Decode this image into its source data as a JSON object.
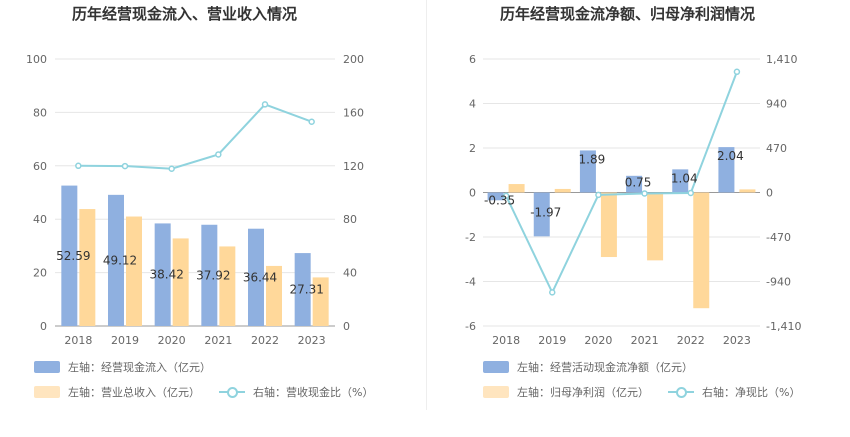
{
  "colors": {
    "blue": "#8fb0e0",
    "orange": "#ffd89a",
    "cyan": "#8fd3de",
    "grid": "#e6e6e6",
    "axis_text": "#666666",
    "title": "#333333"
  },
  "chart_data": [
    {
      "type": "bar",
      "title": "历年经营现金流入、营业收入情况",
      "categories": [
        "2018",
        "2019",
        "2020",
        "2021",
        "2022",
        "2023"
      ],
      "series": [
        {
          "name": "左轴：经营现金流入（亿元）",
          "axis": "left",
          "kind": "bar",
          "values": [
            52.59,
            49.12,
            38.42,
            37.92,
            36.44,
            27.31
          ],
          "labels": [
            "52.59",
            "49.12",
            "38.42",
            "37.92",
            "36.44",
            "27.31"
          ]
        },
        {
          "name": "左轴：营业总收入（亿元）",
          "axis": "left",
          "kind": "bar",
          "values": [
            43.8,
            41.0,
            32.8,
            29.8,
            22.5,
            18.2
          ]
        },
        {
          "name": "右轴：营收现金比（%）",
          "axis": "right",
          "kind": "line",
          "values": [
            120.0,
            119.8,
            117.8,
            128.5,
            166.0,
            153.0
          ]
        }
      ],
      "left_ticks": [
        "0",
        "20",
        "40",
        "60",
        "80",
        "100"
      ],
      "right_ticks": [
        "0",
        "40",
        "80",
        "120",
        "160",
        "200"
      ],
      "ylim_left": [
        0,
        100
      ],
      "ylim_right": [
        0,
        200
      ]
    },
    {
      "type": "bar",
      "title": "历年经营现金流净额、归母净利润情况",
      "categories": [
        "2018",
        "2019",
        "2020",
        "2021",
        "2022",
        "2023"
      ],
      "series": [
        {
          "name": "左轴：经营活动现金流净额（亿元）",
          "axis": "left",
          "kind": "bar",
          "values": [
            -0.35,
            -1.97,
            1.89,
            0.75,
            1.04,
            2.04
          ],
          "labels": [
            "-0.35",
            "-1.97",
            "1.89",
            "0.75",
            "1.04",
            "2.04"
          ]
        },
        {
          "name": "左轴：归母净利润（亿元）",
          "axis": "left",
          "kind": "bar",
          "values": [
            0.38,
            0.16,
            -2.9,
            -3.05,
            -5.2,
            0.14
          ]
        },
        {
          "name": "右轴：净现比（%）",
          "axis": "right",
          "kind": "line",
          "values": [
            -35,
            -1055,
            -25,
            -10,
            -5,
            1275
          ]
        }
      ],
      "left_ticks": [
        "-6",
        "-4",
        "-2",
        "0",
        "2",
        "4",
        "6"
      ],
      "right_ticks": [
        "-1,410",
        "-940",
        "-470",
        "0",
        "470",
        "940",
        "1,410"
      ],
      "ylim_left": [
        -6,
        6
      ],
      "ylim_right": [
        -1410,
        1410
      ]
    }
  ]
}
